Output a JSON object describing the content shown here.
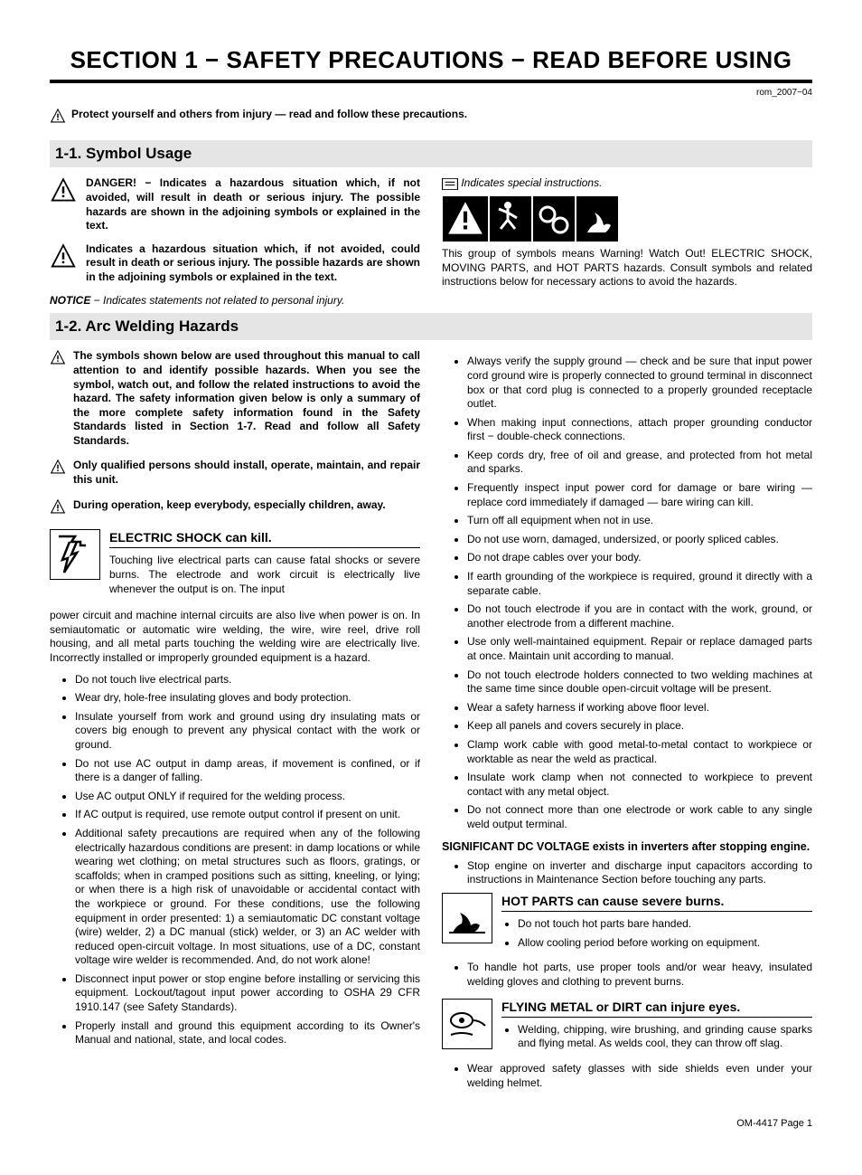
{
  "doc": {
    "section_title": "SECTION 1 − SAFETY PRECAUTIONS − READ BEFORE USING",
    "code": "rom_2007−04",
    "intro": "Protect yourself and others from injury — read and follow these precautions.",
    "footer": "OM-4417 Page 1"
  },
  "s11": {
    "heading": "1-1.   Symbol Usage",
    "left": {
      "danger": "DANGER! − Indicates a hazardous situation which, if not avoided, will result in death or serious injury. The possible hazards are shown in the adjoining symbols or explained in the text.",
      "warning": "Indicates a hazardous situation which, if not avoided, could result in death or serious injury. The possible hazards are shown in the adjoining symbols or explained in the text.",
      "notice_label": "NOTICE",
      "notice_rest": " − Indicates statements not related to personal injury."
    },
    "right": {
      "special": "Indicates special instructions.",
      "explain": "This group of symbols means Warning! Watch Out! ELECTRIC SHOCK, MOVING PARTS, and HOT PARTS hazards. Consult symbols and related instructions below for necessary actions to avoid the hazards."
    }
  },
  "s12": {
    "heading": "1-2.   Arc Welding Hazards",
    "left": {
      "intro": "The symbols shown below are used throughout this manual to call attention to and identify possible hazards. When you see the symbol, watch out, and follow the related instructions to avoid the hazard. The safety information given below is only a summary of the more complete safety information found in the Safety Standards listed in Section 1-7. Read and follow all Safety Standards.",
      "qualified": "Only qualified persons should install, operate, maintain, and repair this unit.",
      "children": "During operation, keep everybody, especially children, away.",
      "electric_title": "ELECTRIC SHOCK can kill.",
      "electric_para1": "Touching live electrical parts can cause fatal shocks or severe burns. The electrode and work circuit is electrically live whenever the output is on. The input",
      "electric_para2": "power circuit and machine internal circuits are also live when power is on. In semiautomatic or automatic wire welding, the wire, wire reel, drive roll housing, and all metal parts touching the welding wire are electrically live. Incorrectly installed or improperly grounded equipment is a hazard.",
      "bullets": [
        "Do not touch live electrical parts.",
        "Wear dry, hole-free insulating gloves and body protection.",
        "Insulate yourself from work and ground using dry insulating mats or covers big enough to prevent any physical contact with the work or ground.",
        "Do not use AC output in damp areas, if movement is confined, or if there is a danger of falling.",
        "Use AC output ONLY if required for the welding process.",
        "If AC output is required, use remote output control if present on unit.",
        "Additional safety precautions are required when any of the following electrically hazardous conditions are present: in damp locations or while wearing wet clothing; on metal structures such as floors, gratings, or scaffolds; when in cramped positions such as sitting, kneeling, or lying; or when there is a high risk of unavoidable or accidental contact with the workpiece or ground. For these conditions, use the following equipment in order presented: 1) a semiautomatic DC constant voltage (wire) welder, 2) a DC manual (stick) welder, or 3) an AC welder with reduced open-circuit voltage. In most situations, use of a DC, constant voltage wire welder is recommended. And, do not work alone!",
        "Disconnect input power or stop engine before installing or servicing this equipment. Lockout/tagout input power according to OSHA 29 CFR 1910.147 (see Safety Standards).",
        "Properly install and ground this equipment according to its Owner's Manual and national, state, and local codes."
      ]
    },
    "right": {
      "bullets1": [
        "Always verify the supply ground — check and be sure that input power cord ground wire is properly connected to ground terminal in disconnect box or that cord plug is connected to a properly grounded receptacle outlet.",
        "When making input connections, attach proper grounding conductor first − double-check connections.",
        "Keep cords dry, free of oil and grease, and protected from hot metal and sparks.",
        "Frequently inspect input power cord for damage or bare wiring — replace cord immediately if damaged — bare wiring can kill.",
        "Turn off all equipment when not in use.",
        "Do not use worn, damaged, undersized, or poorly spliced cables.",
        "Do not drape cables over your body.",
        "If earth grounding of the workpiece is required, ground it directly with a separate cable.",
        "Do not touch electrode if you are in contact with the work, ground, or another electrode from a different machine.",
        "Use only well-maintained equipment. Repair or replace damaged parts at once. Maintain unit according to manual.",
        "Do not touch electrode holders connected to two welding machines at the same time since double open-circuit voltage will be present.",
        "Wear a safety harness if working above floor level.",
        "Keep all panels and covers securely in place.",
        "Clamp work cable with good metal-to-metal contact to workpiece or worktable as near the weld as practical.",
        "Insulate work clamp when not connected to workpiece to prevent contact with any metal object.",
        "Do not connect more than one electrode or work cable to any single weld output terminal."
      ],
      "dc_voltage": "SIGNIFICANT DC VOLTAGE exists in inverters after stopping engine.",
      "bullets2": [
        "Stop engine on inverter and discharge input capacitors according to instructions in Maintenance Section before touching any parts."
      ],
      "hot_title": "HOT PARTS can cause severe burns.",
      "hot_bullets": [
        "Do not touch hot parts bare handed.",
        "Allow cooling period before working on equipment."
      ],
      "hot_bullets2": [
        "To handle hot parts, use proper tools and/or wear heavy, insulated welding gloves and clothing to prevent burns."
      ],
      "flying_title": "FLYING METAL or DIRT can injure eyes.",
      "flying_bullets": [
        "Welding, chipping, wire brushing, and grinding cause sparks and flying metal. As welds cool, they can throw off slag."
      ],
      "flying_bullets2": [
        "Wear approved safety glasses with side shields even under your welding helmet."
      ]
    }
  },
  "icons": {
    "triangle_small_size": 16,
    "triangle_large_size": 30,
    "hazard_box_size": 56,
    "colors": {
      "black": "#000000",
      "white": "#ffffff",
      "grey_bg": "#e5e5e5"
    }
  }
}
